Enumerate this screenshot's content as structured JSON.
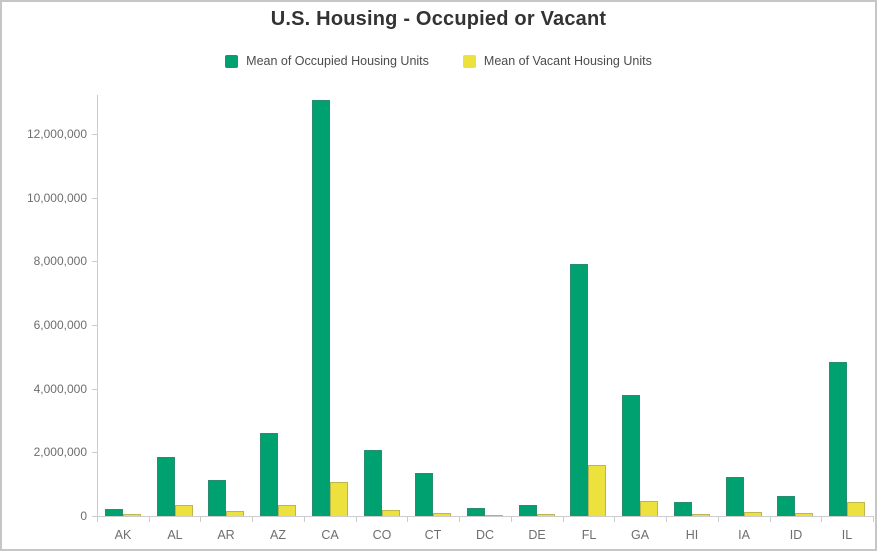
{
  "title": "U.S. Housing - Occupied or Vacant",
  "legend": [
    {
      "label": "Mean of Occupied Housing Units",
      "color": "#00A170"
    },
    {
      "label": "Mean of Vacant Housing Units",
      "color": "#EDE23D"
    }
  ],
  "chart_data": {
    "type": "bar",
    "title": "U.S. Housing - Occupied or Vacant",
    "categories": [
      "AK",
      "AL",
      "AR",
      "AZ",
      "CA",
      "CO",
      "CT",
      "DC",
      "DE",
      "FL",
      "GA",
      "HI",
      "IA",
      "ID",
      "IL"
    ],
    "series": [
      {
        "name": "Mean of Occupied Housing Units",
        "color": "#00A170",
        "values": [
          220000,
          1850000,
          1130000,
          2600000,
          13060000,
          2070000,
          1355000,
          265000,
          340000,
          7900000,
          3790000,
          425000,
          1230000,
          620000,
          4850000
        ]
      },
      {
        "name": "Mean of Vacant Housing Units",
        "color": "#EDE23D",
        "values": [
          55000,
          345000,
          165000,
          355000,
          1065000,
          195000,
          100000,
          35000,
          60000,
          1600000,
          470000,
          65000,
          125000,
          80000,
          455000
        ]
      }
    ],
    "xlabel": "",
    "ylabel": "",
    "ylim": [
      0,
      13300000
    ],
    "yticks": [
      0,
      2000000,
      4000000,
      6000000,
      8000000,
      10000000,
      12000000
    ],
    "ytick_labels": [
      "0",
      "2,000,000",
      "4,000,000",
      "6,000,000",
      "8,000,000",
      "10,000,000",
      "12,000,000"
    ],
    "grid": false,
    "legend_position": "top"
  }
}
